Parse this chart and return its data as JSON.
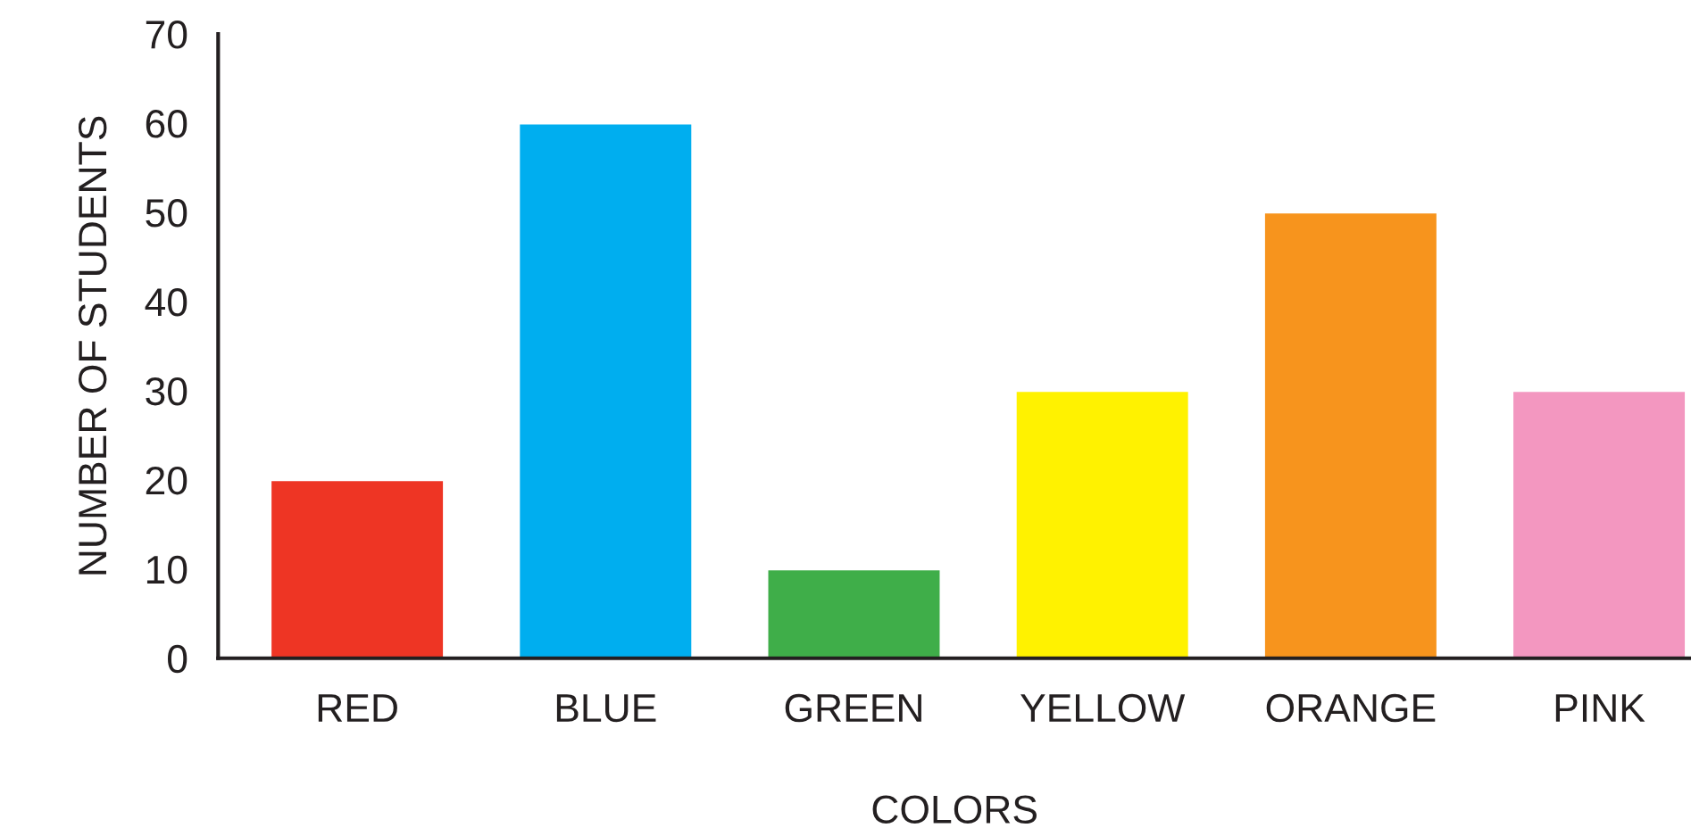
{
  "chart_data": {
    "type": "bar",
    "xlabel": "COLORS",
    "ylabel": "NUMBER OF STUDENTS",
    "categories": [
      "RED",
      "BLUE",
      "GREEN",
      "YELLOW",
      "ORANGE",
      "PINK"
    ],
    "values": [
      20,
      60,
      10,
      30,
      50,
      30
    ],
    "colors": [
      "#ee3524",
      "#00aeef",
      "#3fae49",
      "#fff200",
      "#f7941d",
      "#f397c0"
    ],
    "ylim": [
      0,
      70
    ],
    "yticks": [
      0,
      10,
      20,
      30,
      40,
      50,
      60,
      70
    ],
    "grid": false,
    "legend": false
  }
}
